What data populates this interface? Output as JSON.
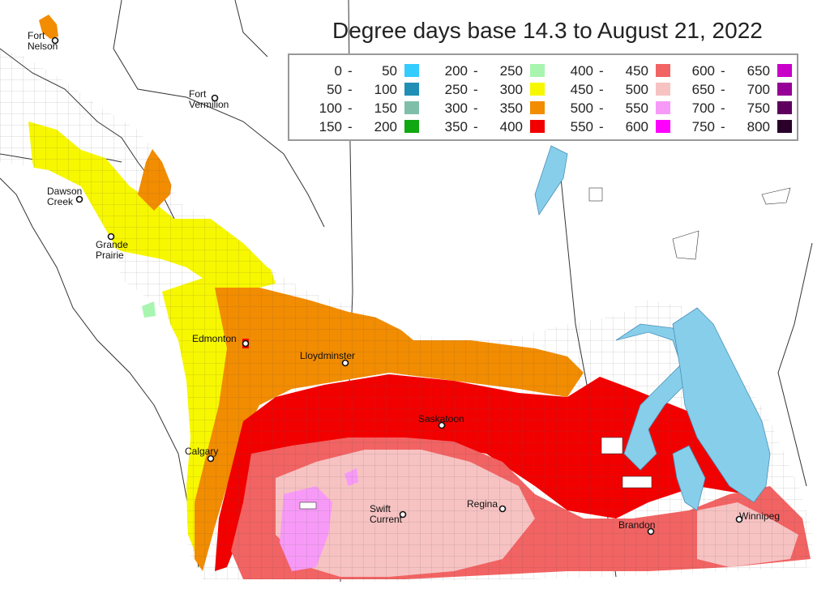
{
  "map": {
    "title": "Degree days base 14.3 to August 21, 2022",
    "colors": {
      "background": "#ffffff",
      "boundary": "#333333",
      "grid": "#777777",
      "lake": "#87ceeb"
    },
    "legend": {
      "items": [
        {
          "lo": "0",
          "hi": "50",
          "color": "#33ccff"
        },
        {
          "lo": "50",
          "hi": "100",
          "color": "#1f8fb5"
        },
        {
          "lo": "100",
          "hi": "150",
          "color": "#7fbfaa"
        },
        {
          "lo": "150",
          "hi": "200",
          "color": "#12a812"
        },
        {
          "lo": "200",
          "hi": "250",
          "color": "#a8f5b0"
        },
        {
          "lo": "250",
          "hi": "300",
          "color": "#f7f700"
        },
        {
          "lo": "300",
          "hi": "350",
          "color": "#f28c00"
        },
        {
          "lo": "350",
          "hi": "400",
          "color": "#f20000"
        },
        {
          "lo": "400",
          "hi": "450",
          "color": "#f26363"
        },
        {
          "lo": "450",
          "hi": "500",
          "color": "#f7c2c2"
        },
        {
          "lo": "500",
          "hi": "550",
          "color": "#f79af7"
        },
        {
          "lo": "550",
          "hi": "600",
          "color": "#ff00ff"
        },
        {
          "lo": "600",
          "hi": "650",
          "color": "#c800c8"
        },
        {
          "lo": "650",
          "hi": "700",
          "color": "#960096"
        },
        {
          "lo": "700",
          "hi": "750",
          "color": "#5f005f"
        },
        {
          "lo": "750",
          "hi": "800",
          "color": "#2a002a"
        }
      ]
    },
    "cities": [
      {
        "name": "Fort\nNelson"
      },
      {
        "name": "Fort\nVermilion"
      },
      {
        "name": "Dawson\nCreek"
      },
      {
        "name": "Grande\nPrairie"
      },
      {
        "name": "Edmonton"
      },
      {
        "name": "Lloydminster"
      },
      {
        "name": "Saskatoon"
      },
      {
        "name": "Calgary"
      },
      {
        "name": "Swift\nCurrent"
      },
      {
        "name": "Regina"
      },
      {
        "name": "Brandon"
      },
      {
        "name": "Winnipeg"
      }
    ]
  }
}
